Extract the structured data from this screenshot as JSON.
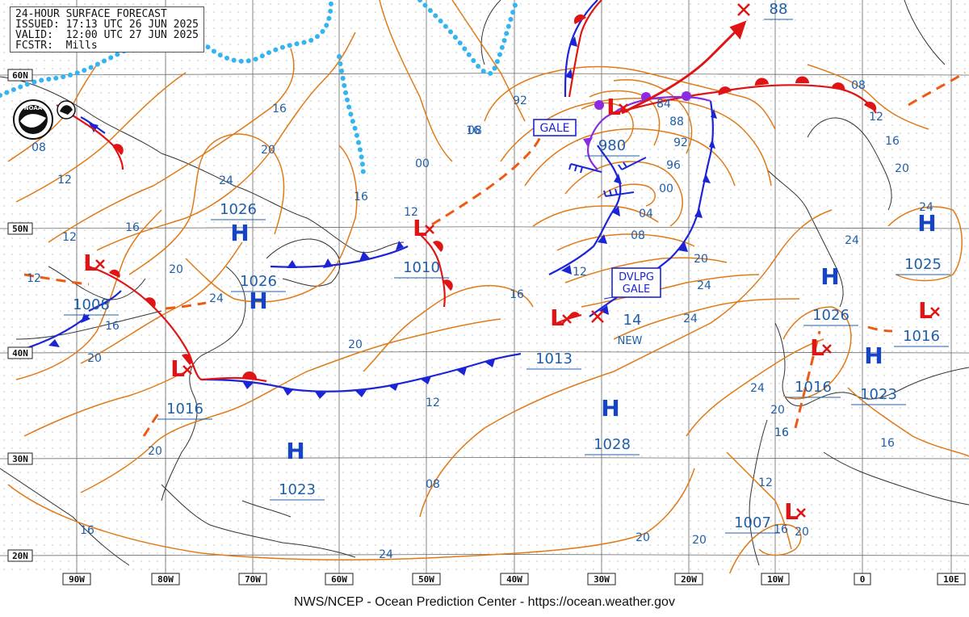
{
  "header": {
    "title": "24-HOUR SURFACE FORECAST",
    "issued": "ISSUED: 17:13 UTC 26 JUN 2025",
    "valid": "VALID:  12:00 UTC 27 JUN 2025",
    "forecaster": "FCSTR:  Mills"
  },
  "footer": "NWS/NCEP - Ocean Prediction Center - https://ocean.weather.gov",
  "logo": "NOAA",
  "lat_labels": [
    "60N",
    "50N",
    "40N",
    "30N",
    "20N"
  ],
  "lon_labels": [
    "90W",
    "80W",
    "70W",
    "60W",
    "50W",
    "40W",
    "30W",
    "20W",
    "10W",
    "0",
    "10E"
  ],
  "systems": [
    {
      "type": "L",
      "pressure": "1008"
    },
    {
      "type": "L",
      "pressure": "1016"
    },
    {
      "type": "L",
      "pressure": "1010"
    },
    {
      "type": "L",
      "pressure": "1013"
    },
    {
      "type": "L",
      "pressure": "980"
    },
    {
      "type": "L",
      "pressure": "1016"
    },
    {
      "type": "L",
      "pressure": "1007"
    },
    {
      "type": "L",
      "pressure": "1016"
    },
    {
      "type": "H",
      "pressure": "1026"
    },
    {
      "type": "H",
      "pressure": "1026"
    },
    {
      "type": "H",
      "pressure": "1023"
    },
    {
      "type": "H",
      "pressure": "1028"
    },
    {
      "type": "H",
      "pressure": "1026"
    },
    {
      "type": "H",
      "pressure": "1023"
    },
    {
      "type": "H",
      "pressure": "1025"
    }
  ],
  "warnings": {
    "gale": "GALE",
    "dvlpg_gale_1": "DVLPG",
    "dvlpg_gale_2": "GALE"
  },
  "new_low": {
    "pressure": "14",
    "note": "NEW"
  },
  "exit_pressure": "88",
  "isobar_labels": [
    "08",
    "12",
    "12",
    "16",
    "12",
    "16",
    "20",
    "24",
    "16",
    "20",
    "24",
    "20",
    "16",
    "08",
    "92",
    "00",
    "12",
    "16",
    "20",
    "12",
    "16",
    "24",
    "84",
    "88",
    "92",
    "96",
    "00",
    "04",
    "08",
    "12",
    "16",
    "20",
    "24",
    "24",
    "08",
    "12",
    "16",
    "20",
    "24",
    "24",
    "20",
    "16",
    "16",
    "20",
    "12",
    "08",
    "20",
    "24",
    "20",
    "16",
    "20",
    "16"
  ],
  "colors": {
    "isobar": "#e07a17",
    "cold_front": "#1c25d6",
    "warm_front": "#e01414",
    "occluded_front": "#8a2be2",
    "ice_edge": "#35b5ef",
    "high": "#1545c4",
    "low": "#e01414",
    "coastline": "#333333",
    "grid": "#555555"
  }
}
